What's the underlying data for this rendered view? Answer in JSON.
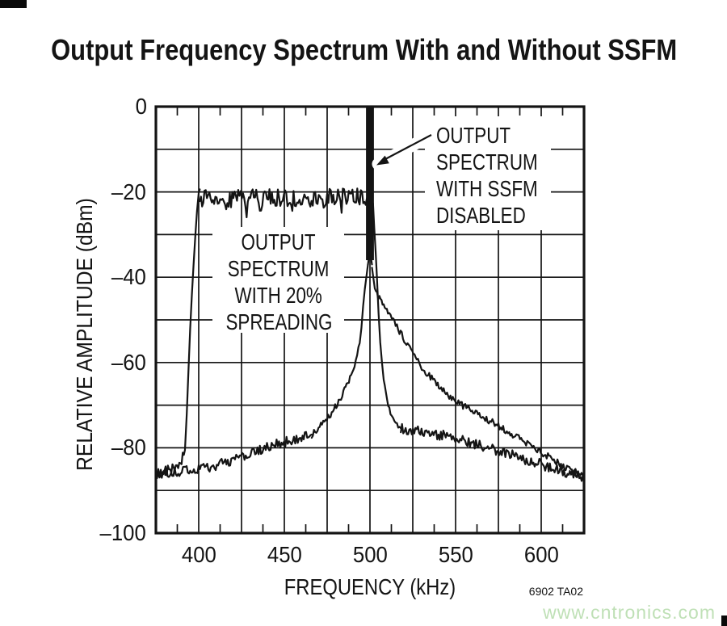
{
  "header": {
    "title": "Output Frequency Spectrum With and Without SSFM"
  },
  "annotations": {
    "spreading": {
      "lines": [
        "OUTPUT",
        "SPECTRUM",
        "WITH 20%",
        "SPREADING"
      ]
    },
    "disabled": {
      "lines": [
        "OUTPUT",
        "SPECTRUM",
        "WITH SSFM",
        "DISABLED"
      ]
    }
  },
  "footer": {
    "doc_code": "6902 TA02",
    "watermark": "www.cntronics.com"
  },
  "colors": {
    "ink": "#141414",
    "watermark": "#bfe0b6",
    "background": "#ffffff"
  },
  "chart_data": {
    "type": "line",
    "title": "Output Frequency Spectrum With and Without SSFM",
    "xlabel": "FREQUENCY (kHz)",
    "ylabel": "RELATIVE AMPLITUDE (dBm)",
    "x_range": [
      375,
      625
    ],
    "y_range": [
      -100,
      0
    ],
    "x_major_step_khz": 25,
    "x_minor_step_khz": 12.5,
    "y_major_step_db": 10,
    "grid": "on",
    "x_tick_values": [
      400,
      450,
      500,
      550,
      600
    ],
    "x_tick_labels": [
      "400",
      "450",
      "500",
      "550",
      "600"
    ],
    "y_tick_values": [
      0,
      -20,
      -40,
      -60,
      -80,
      -100
    ],
    "y_tick_labels": [
      "0",
      "–20",
      "–40",
      "–60",
      "–80",
      "–100"
    ],
    "series": [
      {
        "name": "OUTPUT SPECTRUM WITH SSFM DISABLED",
        "id": "ssfm_disabled",
        "spike": {
          "center_khz": 500,
          "width_khz": 4.6,
          "top_dbm": 0,
          "base_dbm": -36
        },
        "segments": [
          {
            "noise_db": 1.2,
            "points": [
              [
                375,
                -86.5
              ],
              [
                388,
                -85.7
              ],
              [
                400,
                -84.9
              ],
              [
                412,
                -83.9
              ],
              [
                424,
                -82.4
              ],
              [
                435,
                -80.7
              ],
              [
                444,
                -79.4
              ],
              [
                452,
                -78.4
              ],
              [
                460,
                -77.5
              ],
              [
                466,
                -76.9
              ]
            ]
          },
          {
            "noise_db": 0.8,
            "points": [
              [
                466,
                -76.9
              ],
              [
                472,
                -74.6
              ],
              [
                477,
                -72.1
              ],
              [
                481,
                -69.6
              ],
              [
                484.5,
                -67.1
              ],
              [
                487,
                -64.9
              ],
              [
                489,
                -63
              ],
              [
                491,
                -61
              ],
              [
                492.5,
                -58.8
              ],
              [
                494,
                -55.5
              ],
              [
                495,
                -51.5
              ],
              [
                496,
                -47.5
              ],
              [
                497,
                -43.5
              ],
              [
                498,
                -39.8
              ],
              [
                498.8,
                -37
              ]
            ]
          },
          {
            "noise_db": 0,
            "points": [
              [
                498.8,
                -37
              ],
              [
                499.2,
                -36
              ],
              [
                499.2,
                0
              ],
              [
                500.8,
                0
              ],
              [
                500.8,
                -36
              ],
              [
                501.2,
                -37
              ]
            ]
          },
          {
            "noise_db": 0.8,
            "points": [
              [
                501.2,
                -37
              ],
              [
                502.2,
                -41
              ],
              [
                503.5,
                -43.2
              ],
              [
                505.5,
                -45
              ],
              [
                508,
                -46.8
              ],
              [
                510.5,
                -48.3
              ],
              [
                513.5,
                -50.2
              ],
              [
                516.5,
                -52.2
              ],
              [
                520,
                -54.6
              ],
              [
                524,
                -57.3
              ],
              [
                528,
                -59.8
              ],
              [
                532.5,
                -62.2
              ],
              [
                537.5,
                -64.4
              ],
              [
                543,
                -66.6
              ],
              [
                549,
                -68.7
              ],
              [
                555,
                -70.3
              ],
              [
                561,
                -71.7
              ],
              [
                568,
                -73.2
              ],
              [
                575,
                -74.8
              ],
              [
                582,
                -76.5
              ],
              [
                589,
                -78.3
              ],
              [
                597,
                -80.3
              ],
              [
                606,
                -82.6
              ],
              [
                615,
                -84.7
              ],
              [
                625,
                -86.6
              ]
            ]
          }
        ]
      },
      {
        "name": "OUTPUT SPECTRUM WITH 20% SPREADING",
        "id": "spread_20pct",
        "segments": [
          {
            "noise_db": 1.2,
            "points": [
              [
                375,
                -86
              ],
              [
                380,
                -85.6
              ],
              [
                386,
                -84.6
              ],
              [
                390,
                -83.2
              ],
              [
                392,
                -80.5
              ]
            ]
          },
          {
            "noise_db": 0.5,
            "points": [
              [
                392,
                -80.5
              ],
              [
                393,
                -72
              ],
              [
                394,
                -62
              ],
              [
                395,
                -52
              ],
              [
                396,
                -44
              ],
              [
                397,
                -37
              ],
              [
                398,
                -30
              ],
              [
                399,
                -24
              ],
              [
                400,
                -20.6
              ],
              [
                400.6,
                -19.4
              ]
            ]
          },
          {
            "noise_db": 2.1,
            "dropouts": true,
            "points": [
              [
                400.6,
                -21.6
              ],
              [
                501,
                -21.2
              ]
            ]
          },
          {
            "noise_db": 0.5,
            "points": [
              [
                501,
                -20.8
              ],
              [
                501.8,
                -23
              ],
              [
                502.5,
                -28
              ],
              [
                503.3,
                -34
              ],
              [
                504,
                -40
              ],
              [
                505,
                -48
              ],
              [
                506,
                -55
              ],
              [
                507,
                -60
              ],
              [
                508,
                -64
              ],
              [
                510,
                -69
              ],
              [
                512,
                -72
              ],
              [
                515,
                -74.3
              ],
              [
                518,
                -75.4
              ]
            ]
          },
          {
            "noise_db": 1.2,
            "points": [
              [
                518,
                -75.4
              ],
              [
                528,
                -76.1
              ],
              [
                540,
                -76.9
              ],
              [
                552,
                -77.9
              ],
              [
                564,
                -79.4
              ],
              [
                577,
                -80.9
              ],
              [
                590,
                -82.6
              ],
              [
                603,
                -84.3
              ],
              [
                614,
                -85.7
              ],
              [
                625,
                -87
              ]
            ]
          }
        ]
      }
    ]
  }
}
